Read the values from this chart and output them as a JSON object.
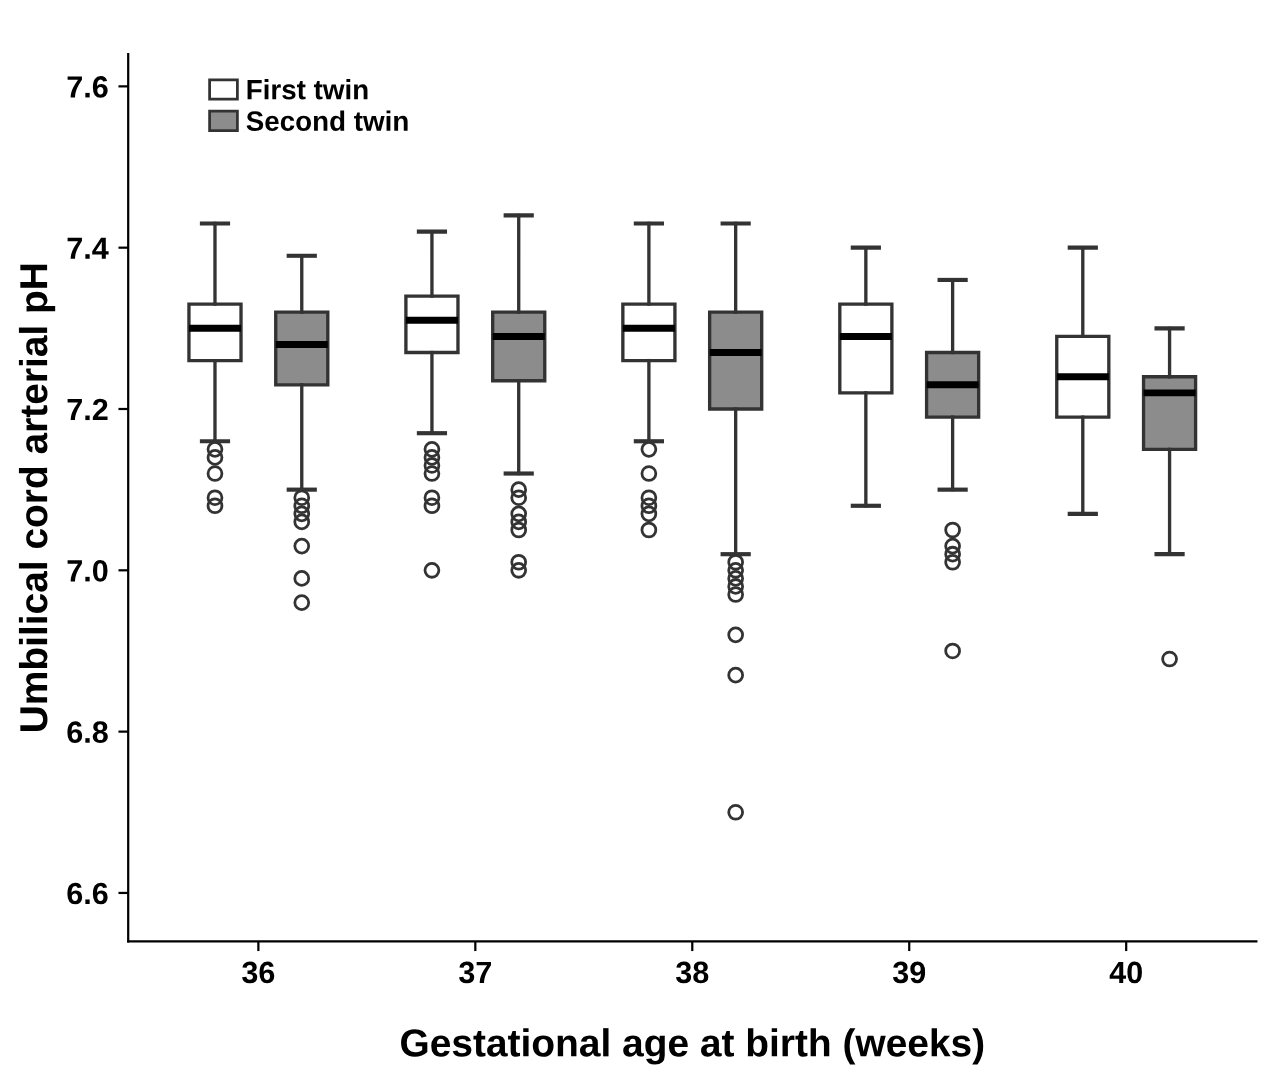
{
  "chart_data": {
    "type": "box",
    "xlabel": "Gestational age at birth (weeks)",
    "ylabel": "Umbilical cord arterial pH",
    "categories": [
      "36",
      "37",
      "38",
      "39",
      "40"
    ],
    "ylim": [
      6.54,
      7.64
    ],
    "yticks": [
      6.6,
      6.8,
      {
        "value": 7.0,
        "label": "7.0"
      },
      7.2,
      7.4,
      7.6
    ],
    "grid": false,
    "legend": "top left",
    "series": [
      {
        "name": "First twin",
        "color": "#ffffff",
        "boxes": [
          {
            "low": 7.16,
            "q1": 7.26,
            "median": 7.3,
            "q3": 7.33,
            "high": 7.43,
            "outliers": [
              7.15,
              7.14,
              7.12,
              7.09,
              7.08
            ]
          },
          {
            "low": 7.17,
            "q1": 7.27,
            "median": 7.31,
            "q3": 7.34,
            "high": 7.42,
            "outliers": [
              7.15,
              7.14,
              7.13,
              7.12,
              7.09,
              7.08,
              7.0
            ]
          },
          {
            "low": 7.16,
            "q1": 7.26,
            "median": 7.3,
            "q3": 7.33,
            "high": 7.43,
            "outliers": [
              7.15,
              7.12,
              7.09,
              7.08,
              7.07,
              7.05
            ]
          },
          {
            "low": 7.08,
            "q1": 7.22,
            "median": 7.29,
            "q3": 7.33,
            "high": 7.4
          },
          {
            "low": 7.07,
            "q1": 7.19,
            "median": 7.24,
            "q3": 7.29,
            "high": 7.4
          }
        ]
      },
      {
        "name": "Second twin",
        "color": "#8c8c8c",
        "boxes": [
          {
            "low": 7.1,
            "q1": 7.23,
            "median": 7.28,
            "q3": 7.32,
            "high": 7.39,
            "outliers": [
              7.09,
              7.08,
              7.07,
              7.06,
              7.03,
              6.99,
              6.96
            ]
          },
          {
            "low": 7.12,
            "q1": 7.235,
            "median": 7.29,
            "q3": 7.32,
            "high": 7.44,
            "outliers": [
              7.1,
              7.09,
              7.07,
              7.06,
              7.05,
              7.01,
              7.0
            ]
          },
          {
            "low": 7.02,
            "q1": 7.2,
            "median": 7.27,
            "q3": 7.32,
            "high": 7.43,
            "outliers": [
              7.01,
              7.0,
              6.99,
              6.98,
              6.97,
              6.92,
              6.87,
              6.7
            ]
          },
          {
            "low": 7.1,
            "q1": 7.19,
            "median": 7.23,
            "q3": 7.27,
            "high": 7.36,
            "outliers": [
              7.05,
              7.03,
              7.02,
              7.01,
              6.9
            ]
          },
          {
            "low": 7.02,
            "q1": 7.15,
            "median": 7.22,
            "q3": 7.24,
            "high": 7.3,
            "outliers": [
              6.89
            ]
          }
        ]
      }
    ]
  }
}
